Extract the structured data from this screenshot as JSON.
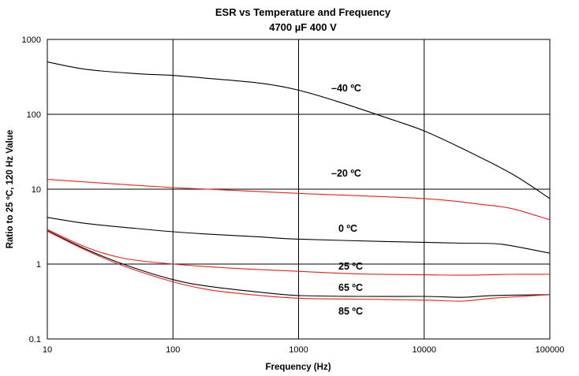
{
  "chart_data": {
    "type": "line",
    "title": "ESR vs Temperature and Frequency",
    "subtitle": "4700 µF 400 V",
    "xlabel": "Frequency (Hz)",
    "ylabel": "Ratio to 25 ºC, 120 Hz Value",
    "x_scale": "log",
    "y_scale": "log",
    "xlim": [
      10,
      100000
    ],
    "ylim": [
      0.1,
      1000
    ],
    "x_ticks": [
      "10",
      "100",
      "1000",
      "10000",
      "100000"
    ],
    "y_ticks": [
      "0.1",
      "1",
      "10",
      "100",
      "1000"
    ],
    "grid": true,
    "legend": "none",
    "series": [
      {
        "name": "–40 ºC",
        "color": "#000000",
        "x": [
          10,
          20,
          50,
          100,
          200,
          500,
          1000,
          2000,
          5000,
          10000,
          20000,
          50000,
          100000
        ],
        "y": [
          500,
          400,
          350,
          330,
          300,
          260,
          210,
          150,
          90,
          60,
          35,
          16,
          7.5
        ]
      },
      {
        "name": "–20 ºC",
        "color": "#e8201c",
        "x": [
          10,
          100,
          1000,
          10000,
          30000,
          50000,
          100000
        ],
        "y": [
          13.5,
          10.5,
          8.8,
          7.5,
          6.2,
          5.5,
          3.9
        ]
      },
      {
        "name": "0 ºC",
        "color": "#000000",
        "x": [
          10,
          20,
          50,
          100,
          200,
          500,
          1000,
          5000,
          10000,
          20000,
          35000,
          50000,
          100000
        ],
        "y": [
          4.2,
          3.5,
          3.0,
          2.7,
          2.5,
          2.3,
          2.15,
          2.0,
          1.95,
          1.9,
          1.88,
          1.75,
          1.4
        ]
      },
      {
        "name": "25 ºC",
        "color": "#e8201c",
        "x": [
          10,
          20,
          40,
          100,
          300,
          1000,
          3000,
          10000,
          20000,
          50000,
          100000
        ],
        "y": [
          2.9,
          1.7,
          1.2,
          1.0,
          0.88,
          0.8,
          0.74,
          0.72,
          0.71,
          0.73,
          0.73
        ]
      },
      {
        "name": "65 ºC",
        "color": "#000000",
        "x": [
          10,
          20,
          40,
          100,
          200,
          500,
          1000,
          3000,
          10000,
          20000,
          35000,
          100000
        ],
        "y": [
          2.8,
          1.6,
          1.0,
          0.62,
          0.5,
          0.42,
          0.38,
          0.37,
          0.37,
          0.36,
          0.38,
          0.39
        ]
      },
      {
        "name": "85 ºC",
        "color": "#e8201c",
        "x": [
          10,
          20,
          40,
          100,
          200,
          500,
          1000,
          3000,
          10000,
          20000,
          35000,
          100000
        ],
        "y": [
          2.75,
          1.55,
          0.95,
          0.58,
          0.45,
          0.38,
          0.35,
          0.34,
          0.33,
          0.32,
          0.35,
          0.39
        ]
      }
    ]
  }
}
